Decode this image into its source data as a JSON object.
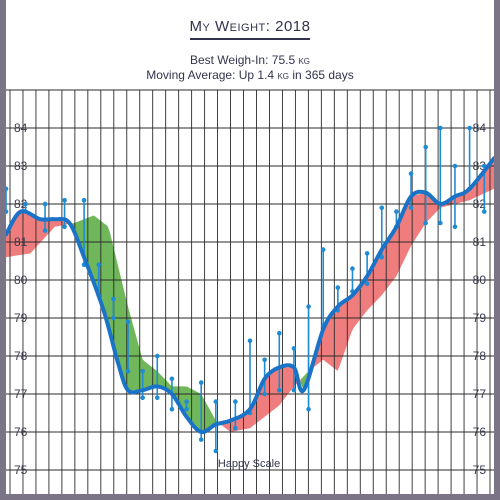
{
  "header": {
    "title": "My Weight: 2018",
    "best_weigh_in": "Best Weigh-In: 75.5 kg",
    "moving_average": "Moving Average: Up 1.4 kg in 365 days"
  },
  "colors": {
    "moving_average_line": "#1a73c7",
    "weigh_in_points": "#1f8bd3",
    "gain_area": "#ef7d7d",
    "loss_area": "#6fb75a",
    "grid": "#2b2b2b",
    "frame": "#7a7486"
  },
  "chart_data": {
    "type": "line",
    "y_ticks": [
      "75",
      "76",
      "77",
      "78",
      "79",
      "80",
      "81",
      "82",
      "83",
      "84"
    ],
    "ylim": [
      74.7,
      85.0
    ],
    "branding": "Happy Scale",
    "daily_range": [
      {
        "t": 0.0,
        "min": 81.8,
        "max": 82.4
      },
      {
        "t": 0.04,
        "min": 81.8,
        "max": 82.0
      },
      {
        "t": 0.08,
        "min": 81.3,
        "max": 82.0
      },
      {
        "t": 0.12,
        "min": 81.4,
        "max": 82.1
      },
      {
        "t": 0.16,
        "min": 80.4,
        "max": 82.1
      },
      {
        "t": 0.19,
        "min": 79.6,
        "max": 80.4
      },
      {
        "t": 0.22,
        "min": 79.0,
        "max": 79.5
      },
      {
        "t": 0.25,
        "min": 77.6,
        "max": 78.9
      },
      {
        "t": 0.28,
        "min": 76.9,
        "max": 77.6
      },
      {
        "t": 0.31,
        "min": 76.9,
        "max": 78.0
      },
      {
        "t": 0.34,
        "min": 76.6,
        "max": 77.4
      },
      {
        "t": 0.37,
        "min": 76.6,
        "max": 76.8
      },
      {
        "t": 0.4,
        "min": 75.8,
        "max": 77.3
      },
      {
        "t": 0.43,
        "min": 75.5,
        "max": 76.8
      },
      {
        "t": 0.47,
        "min": 76.1,
        "max": 76.8
      },
      {
        "t": 0.5,
        "min": 76.5,
        "max": 78.4
      },
      {
        "t": 0.53,
        "min": 77.0,
        "max": 77.9
      },
      {
        "t": 0.56,
        "min": 77.1,
        "max": 78.6
      },
      {
        "t": 0.59,
        "min": 77.1,
        "max": 78.2
      },
      {
        "t": 0.62,
        "min": 76.6,
        "max": 79.3
      },
      {
        "t": 0.65,
        "min": 78.8,
        "max": 80.8
      },
      {
        "t": 0.68,
        "min": 79.2,
        "max": 79.8
      },
      {
        "t": 0.71,
        "min": 79.7,
        "max": 80.3
      },
      {
        "t": 0.74,
        "min": 79.9,
        "max": 80.7
      },
      {
        "t": 0.77,
        "min": 80.6,
        "max": 81.9
      },
      {
        "t": 0.8,
        "min": 81.4,
        "max": 81.8
      },
      {
        "t": 0.83,
        "min": 81.9,
        "max": 82.8
      },
      {
        "t": 0.86,
        "min": 81.5,
        "max": 83.5
      },
      {
        "t": 0.89,
        "min": 81.5,
        "max": 84.0
      },
      {
        "t": 0.92,
        "min": 81.4,
        "max": 83.0
      },
      {
        "t": 0.95,
        "min": 82.4,
        "max": 84.0
      },
      {
        "t": 0.98,
        "min": 81.8,
        "max": 83.0
      }
    ],
    "moving_average": [
      [
        0.0,
        81.2
      ],
      [
        0.03,
        81.8
      ],
      [
        0.07,
        81.6
      ],
      [
        0.1,
        81.6
      ],
      [
        0.13,
        81.5
      ],
      [
        0.16,
        80.6
      ],
      [
        0.2,
        79.2
      ],
      [
        0.23,
        77.8
      ],
      [
        0.25,
        77.1
      ],
      [
        0.28,
        77.1
      ],
      [
        0.31,
        77.2
      ],
      [
        0.34,
        77.0
      ],
      [
        0.37,
        76.4
      ],
      [
        0.4,
        76.0
      ],
      [
        0.43,
        76.2
      ],
      [
        0.46,
        76.3
      ],
      [
        0.5,
        76.6
      ],
      [
        0.53,
        77.4
      ],
      [
        0.56,
        77.7
      ],
      [
        0.59,
        77.7
      ],
      [
        0.61,
        77.1
      ],
      [
        0.65,
        78.7
      ],
      [
        0.68,
        79.3
      ],
      [
        0.71,
        79.6
      ],
      [
        0.74,
        80.1
      ],
      [
        0.77,
        80.8
      ],
      [
        0.8,
        81.4
      ],
      [
        0.83,
        82.2
      ],
      [
        0.86,
        82.3
      ],
      [
        0.89,
        82.0
      ],
      [
        0.92,
        82.2
      ],
      [
        0.95,
        82.4
      ],
      [
        1.0,
        83.2
      ]
    ],
    "lagged_average": [
      [
        0.0,
        80.6
      ],
      [
        0.05,
        80.7
      ],
      [
        0.1,
        81.4
      ],
      [
        0.14,
        81.5
      ],
      [
        0.18,
        81.7
      ],
      [
        0.21,
        81.4
      ],
      [
        0.25,
        79.3
      ],
      [
        0.28,
        77.9
      ],
      [
        0.31,
        77.6
      ],
      [
        0.34,
        77.2
      ],
      [
        0.37,
        77.2
      ],
      [
        0.4,
        77.0
      ],
      [
        0.43,
        76.3
      ],
      [
        0.46,
        76.0
      ],
      [
        0.5,
        76.1
      ],
      [
        0.53,
        76.4
      ],
      [
        0.56,
        76.7
      ],
      [
        0.59,
        77.2
      ],
      [
        0.62,
        77.6
      ],
      [
        0.65,
        77.9
      ],
      [
        0.68,
        77.6
      ],
      [
        0.71,
        78.7
      ],
      [
        0.74,
        79.2
      ],
      [
        0.77,
        79.6
      ],
      [
        0.8,
        80.1
      ],
      [
        0.83,
        80.9
      ],
      [
        0.86,
        81.5
      ],
      [
        0.89,
        81.9
      ],
      [
        0.92,
        82.0
      ],
      [
        0.95,
        82.1
      ],
      [
        1.0,
        82.4
      ]
    ]
  }
}
